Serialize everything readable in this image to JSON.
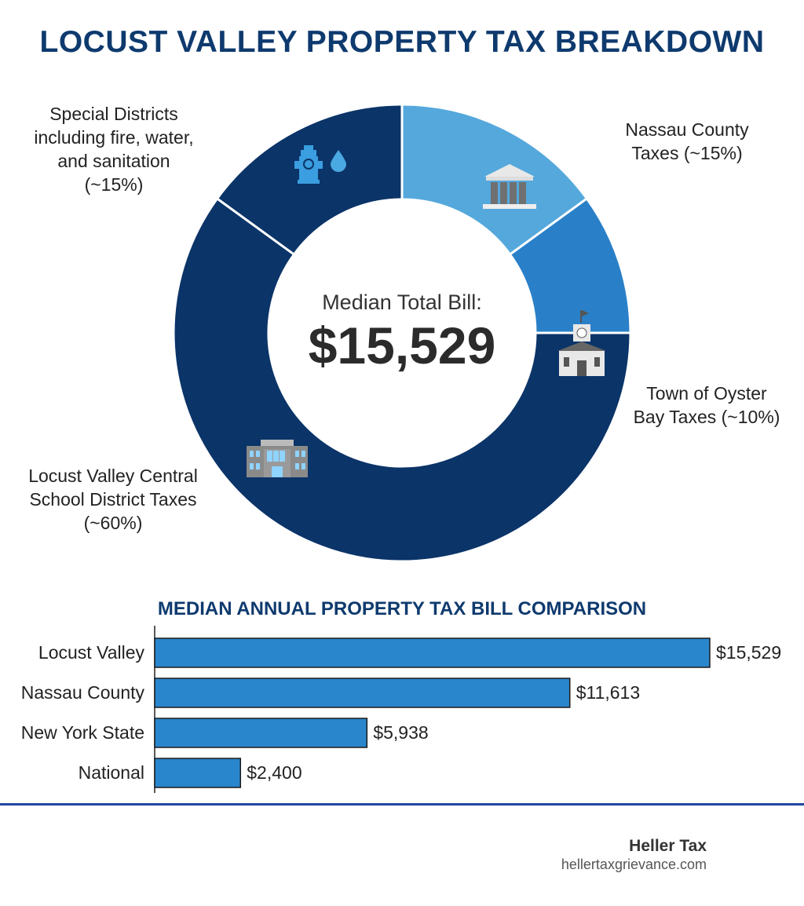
{
  "title": "LOCUST VALLEY PROPERTY TAX BREAKDOWN",
  "center": {
    "label": "Median Total Bill:",
    "value": "$15,529"
  },
  "chart_data": [
    {
      "type": "pie",
      "donut": true,
      "slices": [
        {
          "name": "Nassau County Taxes",
          "label_lines": [
            "Nassau County",
            "Taxes (~15%)"
          ],
          "value": 15,
          "color": "#55a8dc",
          "icon": "courthouse-icon"
        },
        {
          "name": "Town of Oyster Bay Taxes",
          "label_lines": [
            "Town of Oyster",
            "Bay Taxes (~10%)"
          ],
          "value": 10,
          "color": "#2a80c8",
          "icon": "town-hall-icon"
        },
        {
          "name": "Locust Valley Central School District Taxes",
          "label_lines": [
            "Locust Valley Central",
            "School District Taxes",
            "(~60%)"
          ],
          "value": 60,
          "color": "#0b3468",
          "icon": "school-building-icon"
        },
        {
          "name": "Special Districts including fire, water, and sanitation",
          "label_lines": [
            "Special Districts",
            "including fire, water,",
            "and sanitation",
            "(~15%)"
          ],
          "value": 15,
          "color": "#0b3468",
          "icon": "fire-hydrant-water-drop-icon"
        }
      ]
    },
    {
      "type": "bar",
      "orientation": "horizontal",
      "title": "MEDIAN ANNUAL PROPERTY TAX BILL COMPARISON",
      "categories": [
        "Locust Valley",
        "Nassau County",
        "New York State",
        "National"
      ],
      "values": [
        15529,
        11613,
        5938,
        2400
      ],
      "value_labels": [
        "$15,529",
        "$11,613",
        "$5,938",
        "$2,400"
      ],
      "color": "#2a86cc",
      "grid": false
    }
  ],
  "footer": {
    "brand": "Heller Tax",
    "url": "hellertaxgrievance.com"
  }
}
